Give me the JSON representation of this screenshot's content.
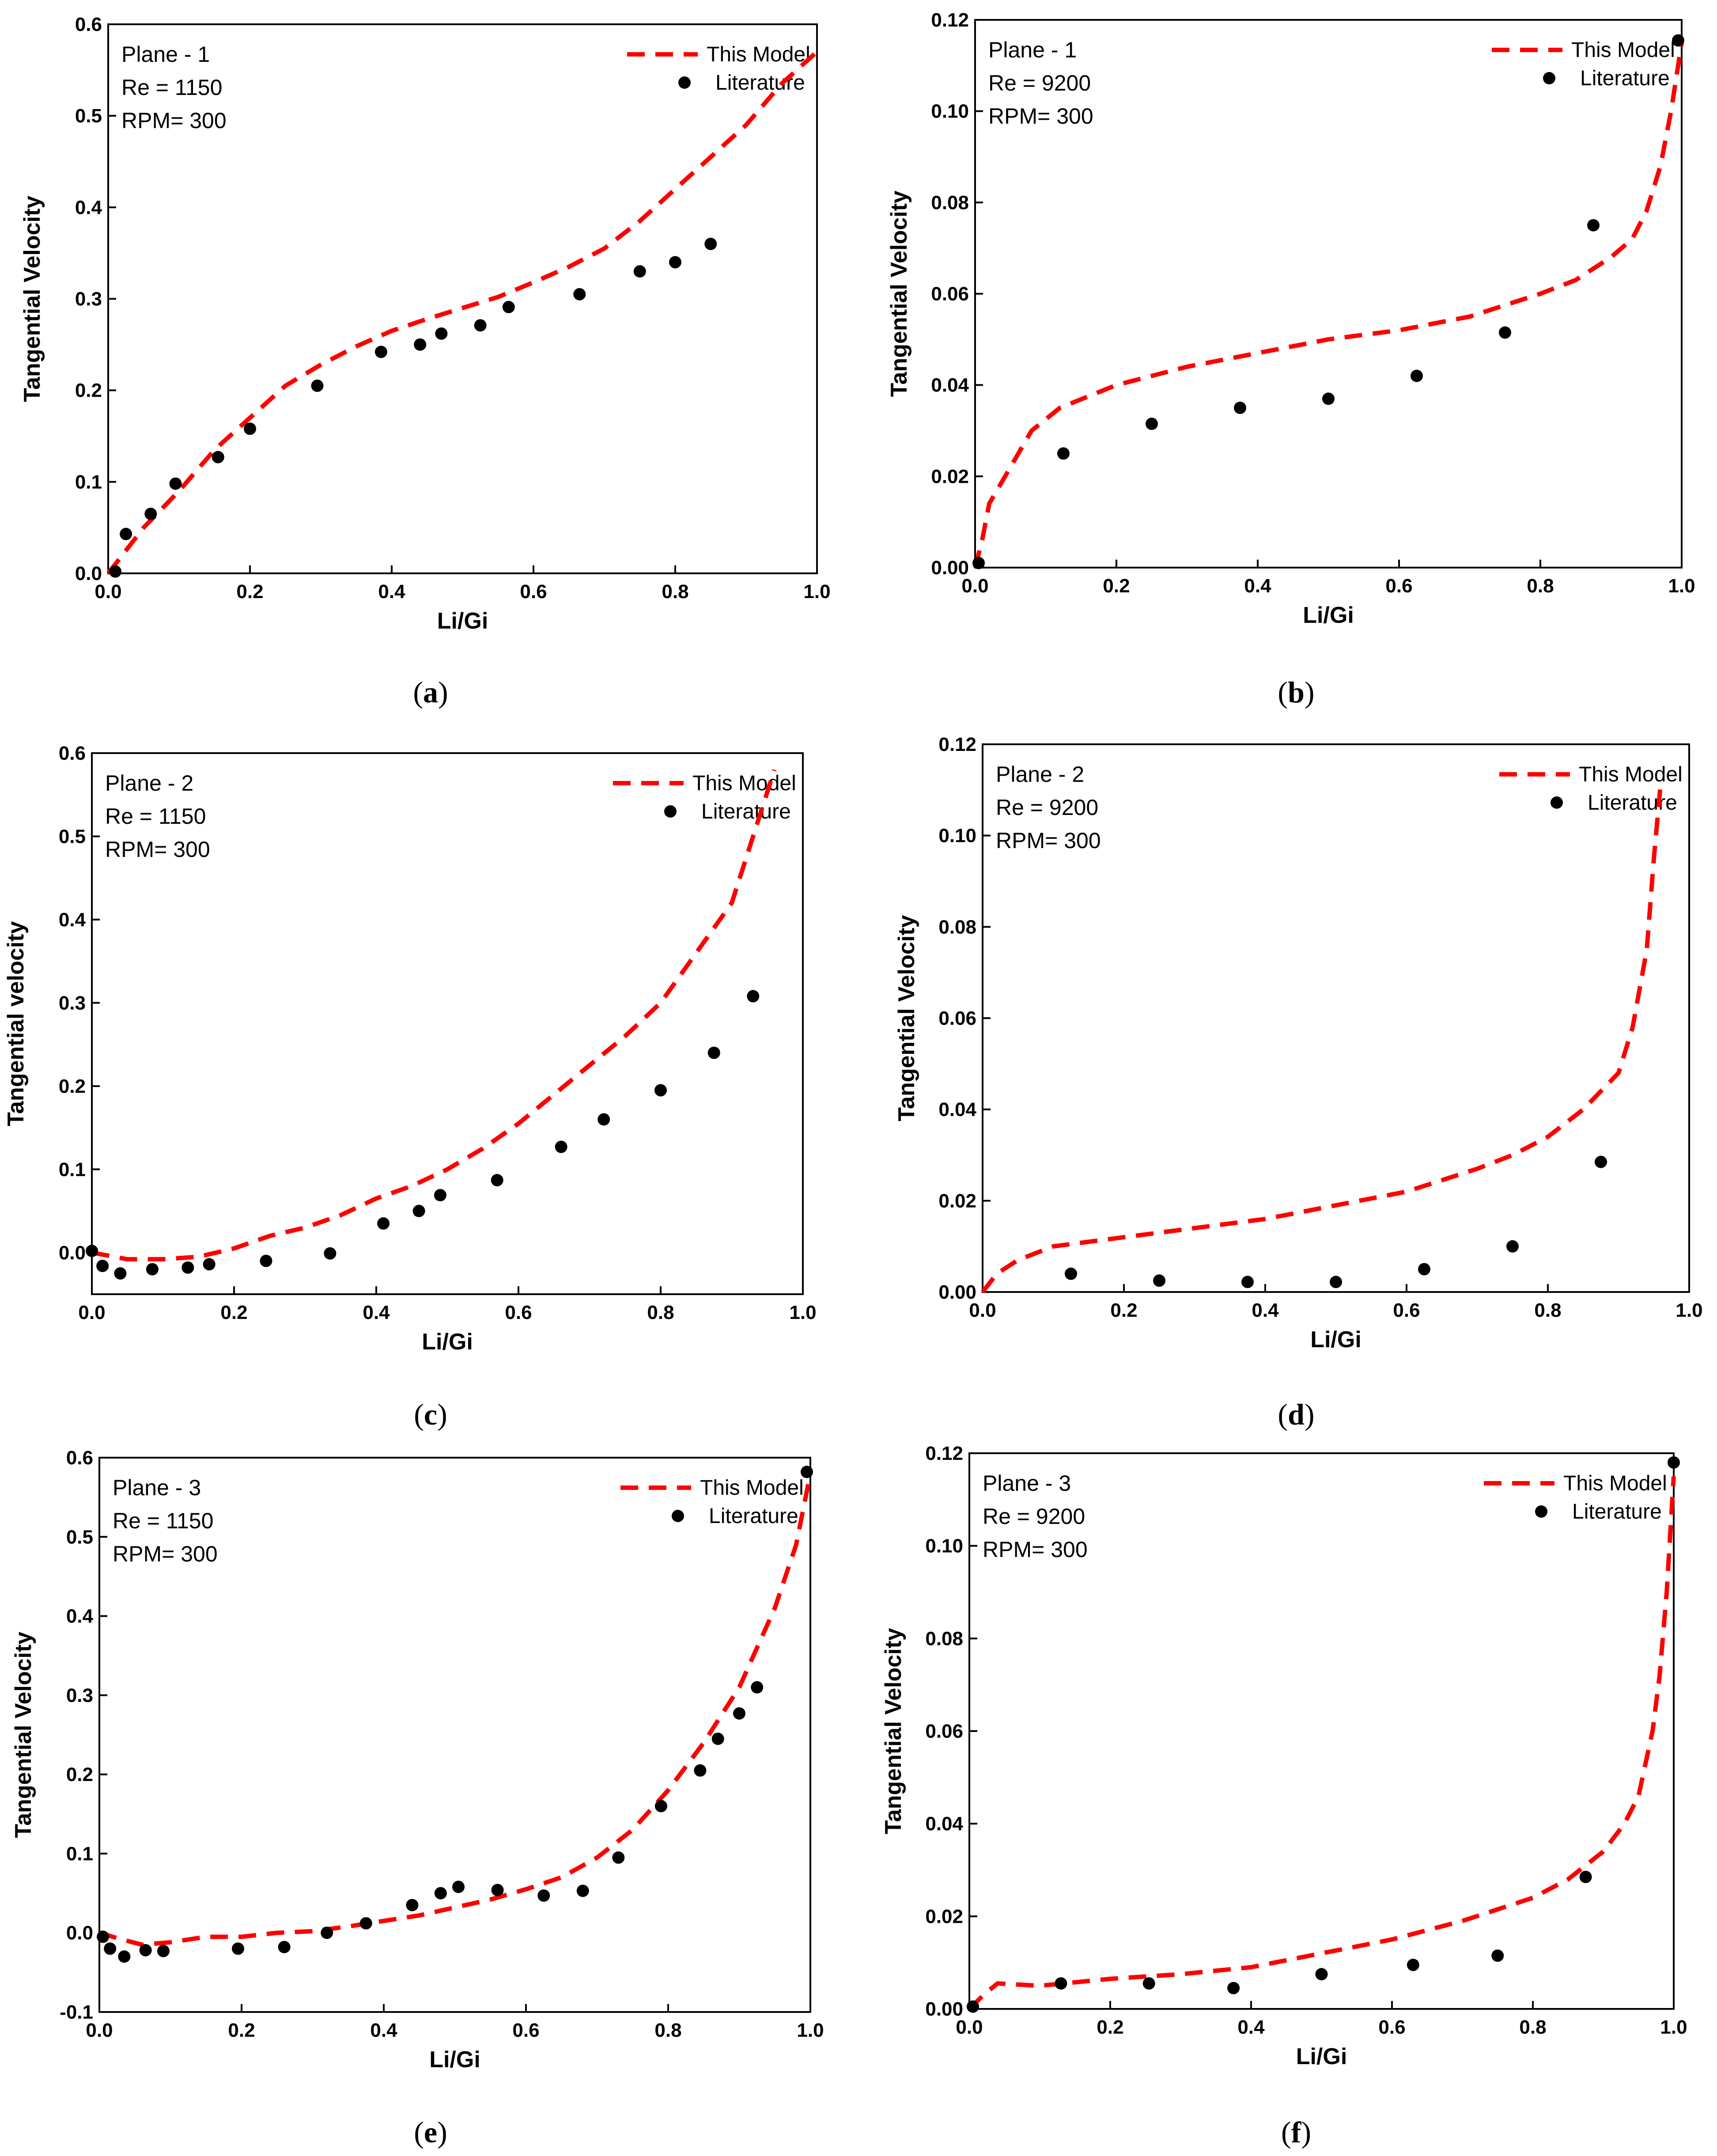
{
  "figure": {
    "panels": [
      {
        "id": "a",
        "caption": "a"
      },
      {
        "id": "b",
        "caption": "b"
      },
      {
        "id": "c",
        "caption": "c"
      },
      {
        "id": "d",
        "caption": "d"
      },
      {
        "id": "e",
        "caption": "e"
      },
      {
        "id": "f",
        "caption": "f"
      }
    ]
  },
  "chart_data": [
    {
      "panel": "a",
      "type": "line",
      "info": [
        "Plane - 1",
        "Re = 1150",
        "RPM= 300"
      ],
      "xlabel": "Li/Gi",
      "ylabel": "Tangential Velocity",
      "xlim": [
        0,
        1
      ],
      "ylim": [
        0,
        0.6
      ],
      "xticks": [
        0.0,
        0.2,
        0.4,
        0.6,
        0.8,
        1.0
      ],
      "xtick_labels": [
        "0.0",
        "0.2",
        "0.4",
        "0.6",
        "0.8",
        "1.0"
      ],
      "yticks": [
        0.0,
        0.1,
        0.2,
        0.3,
        0.4,
        0.5,
        0.6
      ],
      "ytick_labels": [
        "0.0",
        "0.1",
        "0.2",
        "0.3",
        "0.4",
        "0.5",
        "0.6"
      ],
      "legend": [
        "This Model",
        "Literature"
      ],
      "series": [
        {
          "name": "This Model",
          "style": "dashed-line",
          "color": "#ff0000",
          "x": [
            0.0,
            0.05,
            0.1,
            0.15,
            0.2,
            0.25,
            0.3,
            0.35,
            0.4,
            0.45,
            0.5,
            0.55,
            0.6,
            0.65,
            0.7,
            0.75,
            0.8,
            0.85,
            0.9,
            0.95,
            1.0
          ],
          "y": [
            0.0,
            0.05,
            0.09,
            0.135,
            0.17,
            0.205,
            0.228,
            0.248,
            0.265,
            0.278,
            0.29,
            0.302,
            0.318,
            0.335,
            0.355,
            0.385,
            0.42,
            0.455,
            0.49,
            0.535,
            0.57
          ]
        },
        {
          "name": "Literature",
          "style": "points",
          "color": "#000000",
          "x": [
            0.01,
            0.025,
            0.06,
            0.095,
            0.155,
            0.2,
            0.295,
            0.385,
            0.44,
            0.47,
            0.525,
            0.565,
            0.665,
            0.75,
            0.8,
            0.85
          ],
          "y": [
            0.002,
            0.043,
            0.065,
            0.098,
            0.127,
            0.158,
            0.205,
            0.242,
            0.25,
            0.262,
            0.271,
            0.291,
            0.305,
            0.33,
            0.34,
            0.36
          ]
        }
      ]
    },
    {
      "panel": "b",
      "type": "line",
      "info": [
        "Plane - 1",
        "Re = 9200",
        "RPM= 300"
      ],
      "xlabel": "Li/Gi",
      "ylabel": "Tangential Velocity",
      "xlim": [
        0,
        1
      ],
      "ylim": [
        0,
        0.12
      ],
      "xticks": [
        0.0,
        0.2,
        0.4,
        0.6,
        0.8,
        1.0
      ],
      "xtick_labels": [
        "0.0",
        "0.2",
        "0.4",
        "0.6",
        "0.8",
        "1.0"
      ],
      "yticks": [
        0.0,
        0.02,
        0.04,
        0.06,
        0.08,
        0.1,
        0.12
      ],
      "ytick_labels": [
        "0.00",
        "0.02",
        "0.04",
        "0.06",
        "0.08",
        "0.10",
        "0.12"
      ],
      "legend": [
        "This Model",
        "Literature"
      ],
      "series": [
        {
          "name": "This Model",
          "style": "dashed-line",
          "color": "#ff0000",
          "x": [
            0.0,
            0.01,
            0.02,
            0.05,
            0.08,
            0.12,
            0.2,
            0.3,
            0.4,
            0.5,
            0.6,
            0.7,
            0.8,
            0.85,
            0.9,
            0.93,
            0.95,
            0.97,
            0.985,
            1.0
          ],
          "y": [
            0.0,
            0.006,
            0.014,
            0.022,
            0.03,
            0.035,
            0.04,
            0.044,
            0.047,
            0.05,
            0.052,
            0.055,
            0.06,
            0.063,
            0.068,
            0.072,
            0.078,
            0.088,
            0.1,
            0.115
          ]
        },
        {
          "name": "Literature",
          "style": "points",
          "color": "#000000",
          "x": [
            0.005,
            0.125,
            0.25,
            0.375,
            0.5,
            0.625,
            0.75,
            0.875,
            0.995
          ],
          "y": [
            0.001,
            0.025,
            0.0315,
            0.035,
            0.037,
            0.042,
            0.0515,
            0.075,
            0.1155
          ]
        }
      ]
    },
    {
      "panel": "c",
      "type": "line",
      "info": [
        "Plane - 2",
        "Re = 1150",
        "RPM= 300"
      ],
      "xlabel": "Li/Gi",
      "ylabel": "Tangential velocity",
      "xlim": [
        0,
        1
      ],
      "ylim": [
        -0.05,
        0.6
      ],
      "xticks": [
        0.0,
        0.2,
        0.4,
        0.6,
        0.8,
        1.0
      ],
      "xtick_labels": [
        "0.0",
        "0.2",
        "0.4",
        "0.6",
        "0.8",
        "1.0"
      ],
      "yticks": [
        0.0,
        0.1,
        0.2,
        0.3,
        0.4,
        0.5,
        0.6
      ],
      "ytick_labels": [
        "0.0",
        "0.1",
        "0.2",
        "0.3",
        "0.4",
        "0.5",
        "0.6"
      ],
      "legend": [
        "This Model",
        "Literature"
      ],
      "series": [
        {
          "name": "This Model",
          "style": "dashed-line",
          "color": "#ff0000",
          "x": [
            0.0,
            0.05,
            0.1,
            0.15,
            0.2,
            0.25,
            0.3,
            0.35,
            0.4,
            0.45,
            0.5,
            0.55,
            0.6,
            0.65,
            0.7,
            0.75,
            0.8,
            0.85,
            0.9,
            0.93,
            0.96
          ],
          "y": [
            0.0,
            -0.008,
            -0.008,
            -0.005,
            0.005,
            0.02,
            0.03,
            0.045,
            0.065,
            0.08,
            0.1,
            0.125,
            0.155,
            0.19,
            0.225,
            0.26,
            0.3,
            0.36,
            0.42,
            0.5,
            0.58
          ]
        },
        {
          "name": "Literature",
          "style": "points",
          "color": "#000000",
          "x": [
            0.0,
            0.015,
            0.04,
            0.085,
            0.135,
            0.165,
            0.245,
            0.335,
            0.41,
            0.46,
            0.49,
            0.57,
            0.66,
            0.72,
            0.8,
            0.875,
            0.93
          ],
          "y": [
            0.002,
            -0.016,
            -0.025,
            -0.02,
            -0.018,
            -0.014,
            -0.01,
            -0.001,
            0.035,
            0.05,
            0.069,
            0.087,
            0.127,
            0.16,
            0.195,
            0.24,
            0.308
          ]
        }
      ]
    },
    {
      "panel": "d",
      "type": "line",
      "info": [
        "Plane - 2",
        "Re = 9200",
        "RPM= 300"
      ],
      "xlabel": "Li/Gi",
      "ylabel": "Tangential Velocity",
      "xlim": [
        0,
        1
      ],
      "ylim": [
        0,
        0.12
      ],
      "xticks": [
        0.0,
        0.2,
        0.4,
        0.6,
        0.8,
        1.0
      ],
      "xtick_labels": [
        "0.0",
        "0.2",
        "0.4",
        "0.6",
        "0.8",
        "1.0"
      ],
      "yticks": [
        0.0,
        0.02,
        0.04,
        0.06,
        0.08,
        0.1,
        0.12
      ],
      "ytick_labels": [
        "0.00",
        "0.02",
        "0.04",
        "0.06",
        "0.08",
        "0.10",
        "0.12"
      ],
      "legend": [
        "This Model",
        "Literature"
      ],
      "series": [
        {
          "name": "This Model",
          "style": "dashed-line",
          "color": "#ff0000",
          "x": [
            0.0,
            0.02,
            0.05,
            0.1,
            0.15,
            0.2,
            0.3,
            0.4,
            0.5,
            0.6,
            0.7,
            0.75,
            0.8,
            0.85,
            0.9,
            0.92,
            0.94,
            0.95,
            0.96
          ],
          "y": [
            0.0,
            0.004,
            0.007,
            0.01,
            0.011,
            0.012,
            0.014,
            0.016,
            0.019,
            0.022,
            0.027,
            0.03,
            0.034,
            0.04,
            0.048,
            0.058,
            0.075,
            0.095,
            0.112
          ]
        },
        {
          "name": "Literature",
          "style": "points",
          "color": "#000000",
          "x": [
            0.125,
            0.25,
            0.375,
            0.5,
            0.625,
            0.75,
            0.875
          ],
          "y": [
            0.004,
            0.0025,
            0.0022,
            0.0022,
            0.005,
            0.01,
            0.0285
          ]
        }
      ]
    },
    {
      "panel": "e",
      "type": "line",
      "info": [
        "Plane - 3",
        "Re = 1150",
        "RPM= 300"
      ],
      "xlabel": "Li/Gi",
      "ylabel": "Tangential Velocity",
      "xlim": [
        0,
        1
      ],
      "ylim": [
        -0.1,
        0.6
      ],
      "xticks": [
        0.0,
        0.2,
        0.4,
        0.6,
        0.8,
        1.0
      ],
      "xtick_labels": [
        "0.0",
        "0.2",
        "0.4",
        "0.6",
        "0.8",
        "1.0"
      ],
      "yticks": [
        -0.1,
        0.0,
        0.1,
        0.2,
        0.3,
        0.4,
        0.5,
        0.6
      ],
      "ytick_labels": [
        "-0.1",
        "0.0",
        "0.1",
        "0.2",
        "0.3",
        "0.4",
        "0.5",
        "0.6"
      ],
      "legend": [
        "This Model",
        "Literature"
      ],
      "series": [
        {
          "name": "This Model",
          "style": "dashed-line",
          "color": "#ff0000",
          "x": [
            0.0,
            0.03,
            0.06,
            0.1,
            0.15,
            0.2,
            0.25,
            0.3,
            0.35,
            0.4,
            0.45,
            0.5,
            0.55,
            0.6,
            0.65,
            0.7,
            0.75,
            0.8,
            0.85,
            0.9,
            0.95,
            0.98,
            1.0
          ],
          "y": [
            0.0,
            -0.008,
            -0.015,
            -0.012,
            -0.005,
            -0.005,
            0.0,
            0.002,
            0.008,
            0.015,
            0.022,
            0.032,
            0.042,
            0.055,
            0.07,
            0.095,
            0.13,
            0.18,
            0.24,
            0.31,
            0.41,
            0.49,
            0.58
          ]
        },
        {
          "name": "Literature",
          "style": "points",
          "color": "#000000",
          "x": [
            0.005,
            0.015,
            0.035,
            0.065,
            0.09,
            0.195,
            0.26,
            0.32,
            0.375,
            0.44,
            0.48,
            0.505,
            0.56,
            0.625,
            0.68,
            0.73,
            0.79,
            0.845,
            0.87,
            0.9,
            0.925,
            0.995
          ],
          "y": [
            -0.005,
            -0.02,
            -0.03,
            -0.022,
            -0.023,
            -0.02,
            -0.018,
            0.0,
            0.012,
            0.035,
            0.05,
            0.058,
            0.054,
            0.047,
            0.053,
            0.095,
            0.16,
            0.205,
            0.245,
            0.277,
            0.31,
            0.582
          ]
        }
      ]
    },
    {
      "panel": "f",
      "type": "line",
      "info": [
        "Plane - 3",
        "Re = 9200",
        "RPM= 300"
      ],
      "xlabel": "Li/Gi",
      "ylabel": "Tangential Velocity",
      "xlim": [
        0,
        1
      ],
      "ylim": [
        0,
        0.12
      ],
      "xticks": [
        0.0,
        0.2,
        0.4,
        0.6,
        0.8,
        1.0
      ],
      "xtick_labels": [
        "0.0",
        "0.2",
        "0.4",
        "0.6",
        "0.8",
        "1.0"
      ],
      "yticks": [
        0.0,
        0.02,
        0.04,
        0.06,
        0.08,
        0.1,
        0.12
      ],
      "ytick_labels": [
        "0.00",
        "0.02",
        "0.04",
        "0.06",
        "0.08",
        "0.10",
        "0.12"
      ],
      "legend": [
        "This Model",
        "Literature"
      ],
      "series": [
        {
          "name": "This Model",
          "style": "dashed-line",
          "color": "#ff0000",
          "x": [
            0.0,
            0.02,
            0.04,
            0.1,
            0.2,
            0.3,
            0.4,
            0.5,
            0.6,
            0.7,
            0.8,
            0.85,
            0.9,
            0.93,
            0.95,
            0.97,
            0.98,
            0.99,
            1.0
          ],
          "y": [
            0.0,
            0.003,
            0.0055,
            0.005,
            0.0065,
            0.0075,
            0.009,
            0.012,
            0.015,
            0.019,
            0.024,
            0.028,
            0.034,
            0.04,
            0.046,
            0.06,
            0.072,
            0.09,
            0.115
          ]
        },
        {
          "name": "Literature",
          "style": "points",
          "color": "#000000",
          "x": [
            0.005,
            0.13,
            0.255,
            0.375,
            0.5,
            0.63,
            0.75,
            0.875,
            1.0
          ],
          "y": [
            0.0005,
            0.0055,
            0.0055,
            0.0045,
            0.0075,
            0.0095,
            0.0115,
            0.0285,
            0.118
          ]
        }
      ]
    }
  ]
}
